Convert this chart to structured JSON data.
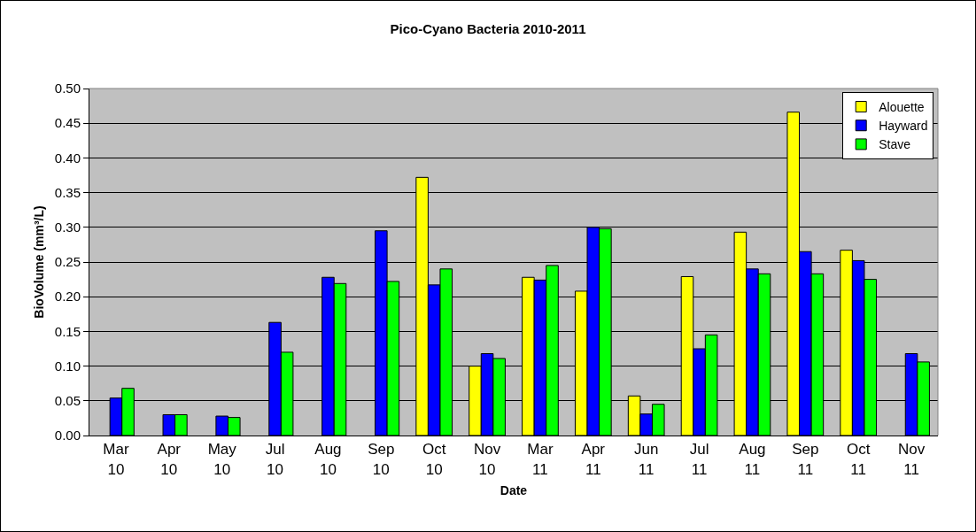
{
  "chart_data": {
    "type": "bar",
    "title": "Pico-Cyano Bacteria 2010-2011",
    "xlabel": "Date",
    "ylabel": "BioVolume (mm³/L)",
    "categories": [
      "Mar 10",
      "Apr 10",
      "May 10",
      "Jul 10",
      "Aug 10",
      "Sep 10",
      "Oct 10",
      "Nov 10",
      "Mar 11",
      "Apr 11",
      "Jun 11",
      "Jul 11",
      "Aug 11",
      "Sep 11",
      "Oct 11",
      "Nov 11"
    ],
    "series": [
      {
        "name": "Alouette",
        "color": "#ffff00",
        "values": [
          null,
          null,
          null,
          null,
          null,
          null,
          0.372,
          0.1,
          0.228,
          0.208,
          0.057,
          0.229,
          0.293,
          0.466,
          0.267,
          null
        ]
      },
      {
        "name": "Hayward",
        "color": "#0000ff",
        "values": [
          0.054,
          0.03,
          0.028,
          0.163,
          0.228,
          0.295,
          0.217,
          0.118,
          0.224,
          0.3,
          0.031,
          0.125,
          0.24,
          0.265,
          0.252,
          0.118
        ]
      },
      {
        "name": "Stave",
        "color": "#00ff00",
        "values": [
          0.068,
          0.03,
          0.026,
          0.12,
          0.219,
          0.222,
          0.24,
          0.111,
          0.245,
          0.298,
          0.045,
          0.145,
          0.233,
          0.233,
          0.225,
          0.106
        ]
      }
    ],
    "ylim": [
      0,
      0.5
    ],
    "yticks": [
      {
        "value": 0,
        "label": "0.00"
      },
      {
        "value": 0.05,
        "label": "0.05"
      },
      {
        "value": 0.1,
        "label": "0.10"
      },
      {
        "value": 0.15,
        "label": "0.15"
      },
      {
        "value": 0.2,
        "label": "0.20"
      },
      {
        "value": 0.25,
        "label": "0.25"
      },
      {
        "value": 0.3,
        "label": "0.30"
      },
      {
        "value": 0.35,
        "label": "0.35"
      },
      {
        "value": 0.4,
        "label": "0.40"
      },
      {
        "value": 0.45,
        "label": "0.45"
      },
      {
        "value": 0.5,
        "label": "0.50"
      }
    ],
    "grid": "y",
    "legend": "top right"
  }
}
